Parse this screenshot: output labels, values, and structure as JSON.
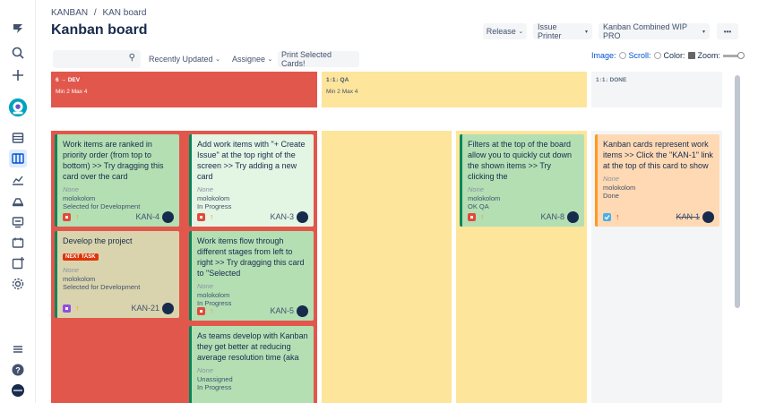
{
  "colors": {
    "red": "#e2574c",
    "yellow": "#fde59c",
    "gray": "#f4f5f7",
    "green_card": "#b3dfb3",
    "green_light": "#e3f5e3",
    "beige": "#d9d4ad",
    "peach": "#ffd9b3",
    "blue_link": "#0052cc"
  },
  "sidebar": {
    "icons": [
      "jira-logo-icon",
      "search-icon",
      "plus-icon",
      "avatar-icon",
      "backlog-icon",
      "board-icon",
      "reports-icon",
      "releases-icon",
      "components-icon",
      "calendar-icon",
      "add-item-icon",
      "settings-icon",
      "menu-icon",
      "help-icon",
      "user-avatar-icon"
    ]
  },
  "breadcrumb": {
    "project": "KANBAN",
    "sep": "/",
    "board": "KAN board"
  },
  "title": "Kanban board",
  "toolbar": {
    "release": "Release",
    "issue_printer": "Issue Printer",
    "wip": "Kanban Combined WIP PRO",
    "more": "•••"
  },
  "filters": {
    "search_placeholder": "",
    "recently_updated": "Recently Updated",
    "assignee": "Assignee",
    "print": "Print Selected Cards!"
  },
  "view_options": {
    "image": "Image:",
    "scroll": "Scroll:",
    "color": "Color:",
    "zoom": "Zoom:"
  },
  "columns": [
    {
      "name": "6 → DEV",
      "limits": "Min 2  Max 4"
    },
    {
      "name": "1↑1↓ QA",
      "limits": "Min 2  Max 4"
    },
    {
      "name": "1↑1↓ DONE",
      "limits": ""
    }
  ],
  "cards": {
    "c1": {
      "text": "Work items are ranked in priority order (from top to bottom) >> Try dragging this card over the card",
      "none": "None",
      "user": "molokolom",
      "status": "Selected for Development",
      "key": "KAN-4"
    },
    "c2": {
      "text": "Develop the project",
      "tag": "NEXT TASK",
      "none": "None",
      "user": "molokolom",
      "status": "Selected for Development",
      "key": "KAN-21"
    },
    "c3": {
      "text": "Add work items with \"+ Create Issue\" at the top right of the screen >> Try adding a new card",
      "none": "None",
      "user": "molokolom",
      "status": "In Progress",
      "key": "KAN-3"
    },
    "c4": {
      "text": "Work items flow through different stages from left to right >> Try dragging this card to \"Selected",
      "none": "None",
      "user": "molokolom",
      "status": "In Progress",
      "key": "KAN-5"
    },
    "c5": {
      "text": "As teams develop with Kanban they get better at reducing average resolution time (aka",
      "none": "None",
      "user": "Unassigned",
      "status": "In Progress"
    },
    "c6": {
      "text": "Filters at the top of the board allow you to quickly cut down the shown items >> Try clicking the",
      "none": "None",
      "user": "molokolom",
      "status": "OK QA",
      "key": "KAN-8"
    },
    "c7": {
      "text": "Kanban cards represent work items >> Click the \"KAN-1\" link at the top of this card to show",
      "none": "None",
      "user": "molokolom",
      "status": "Done",
      "key": "KAN-1"
    }
  }
}
